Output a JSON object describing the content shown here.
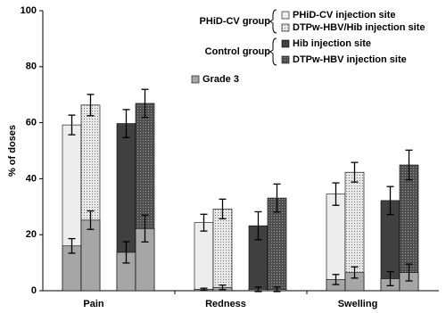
{
  "chart_data": {
    "type": "bar",
    "ylabel": "% of doses",
    "categories": [
      "Pain",
      "Redness",
      "Swelling"
    ],
    "ylim": [
      0,
      100
    ],
    "yticks": [
      0,
      20,
      40,
      60,
      80,
      100
    ],
    "groups": [
      {
        "name": "PHiD-CV group",
        "series": [
          {
            "name": "PHiD-CV injection site",
            "color": "#ededed",
            "pattern": "none",
            "values": [
              59.2,
              24.3,
              34.5
            ],
            "errors": [
              3.5,
              3.0,
              4.0
            ],
            "grade3_values": [
              16.0,
              0.5,
              4.0
            ],
            "grade3_errors": [
              2.6,
              0.4,
              1.8
            ]
          },
          {
            "name": "DTPw-HBV/Hib injection site",
            "color": "#e8e8e8",
            "pattern": "dots",
            "values": [
              66.3,
              29.2,
              42.3
            ],
            "errors": [
              3.8,
              3.5,
              3.5
            ],
            "grade3_values": [
              25.2,
              1.2,
              6.5
            ],
            "grade3_errors": [
              3.3,
              0.8,
              2.0
            ]
          }
        ]
      },
      {
        "name": "Control group",
        "series": [
          {
            "name": "Hib injection site",
            "color": "#404040",
            "pattern": "none",
            "values": [
              59.7,
              23.2,
              32.2
            ],
            "errors": [
              5.0,
              5.0,
              5.0
            ],
            "grade3_values": [
              13.7,
              0.5,
              4.3
            ],
            "grade3_errors": [
              3.8,
              0.8,
              2.5
            ]
          },
          {
            "name": "DTPw-HBV injection site",
            "color": "#505050",
            "pattern": "crosshatch",
            "values": [
              66.9,
              33.1,
              44.9
            ],
            "errors": [
              5.0,
              5.0,
              5.3
            ],
            "grade3_values": [
              22.2,
              0.5,
              6.5
            ],
            "grade3_errors": [
              4.8,
              0.8,
              3.0
            ]
          }
        ]
      }
    ],
    "grade3": {
      "name": "Grade 3",
      "color": "#a6a6a6"
    }
  }
}
